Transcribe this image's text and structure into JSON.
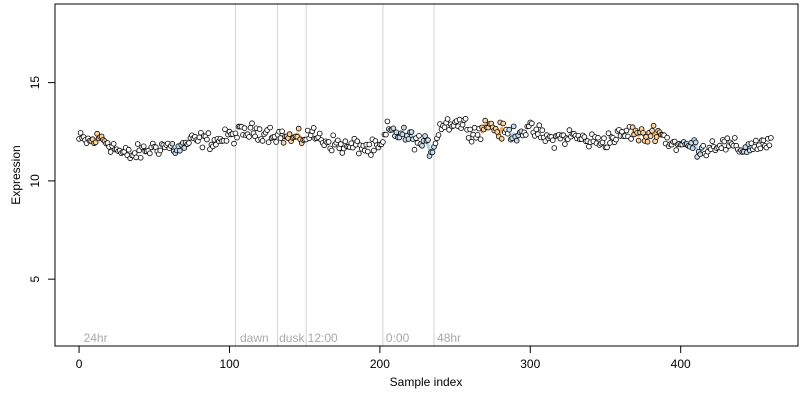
{
  "chart_data": {
    "type": "scatter",
    "title": "",
    "xlabel": "Sample index",
    "ylabel": "Expression",
    "xlim": [
      -16,
      478
    ],
    "ylim": [
      1.6,
      19.0
    ],
    "x_ticks": [
      0,
      100,
      200,
      300,
      400
    ],
    "x_tick_labels": [
      "0",
      "100",
      "200",
      "300",
      "400"
    ],
    "y_ticks": [
      5,
      10,
      15
    ],
    "y_tick_labels": [
      "5",
      "10",
      "15"
    ],
    "grid": false,
    "legend": "none",
    "colors": {
      "point_outline": "#000000",
      "point_fill_a": "#ffd39b",
      "point_fill_b": "#c6dbef",
      "trace_a": "#e59a3a",
      "trace_b": "#9ecae1",
      "vline": "#d3d3d3",
      "annotation": "#a9a9a9"
    },
    "vlines": [
      104,
      132,
      151,
      202,
      236
    ],
    "annotations": [
      {
        "x": 3,
        "label": "24hr"
      },
      {
        "x": 107,
        "label": "dawn"
      },
      {
        "x": 133,
        "label": "dusk"
      },
      {
        "x": 152,
        "label": "12:00"
      },
      {
        "x": 204,
        "label": "0:00"
      },
      {
        "x": 238,
        "label": "48hr"
      }
    ],
    "annotation_y": 2.0,
    "trace_segments": [
      {
        "range": [
          8,
          18
        ],
        "color": "a"
      },
      {
        "range": [
          62,
          70
        ],
        "color": "b"
      },
      {
        "range": [
          136,
          149
        ],
        "color": "a"
      },
      {
        "range": [
          208,
          222
        ],
        "color": "b"
      },
      {
        "range": [
          228,
          236
        ],
        "color": "b"
      },
      {
        "range": [
          268,
          282
        ],
        "color": "a"
      },
      {
        "range": [
          286,
          294
        ],
        "color": "b"
      },
      {
        "range": [
          368,
          388
        ],
        "color": "a"
      },
      {
        "range": [
          402,
          414
        ],
        "color": "b"
      },
      {
        "range": [
          440,
          446
        ],
        "color": "b"
      }
    ],
    "anchor_points": [
      [
        0,
        12.1
      ],
      [
        8,
        12.0
      ],
      [
        15,
        12.2
      ],
      [
        22,
        11.8
      ],
      [
        28,
        11.4
      ],
      [
        35,
        11.3
      ],
      [
        42,
        11.5
      ],
      [
        50,
        11.7
      ],
      [
        58,
        11.8
      ],
      [
        66,
        11.6
      ],
      [
        74,
        12.0
      ],
      [
        82,
        12.1
      ],
      [
        90,
        12.0
      ],
      [
        98,
        12.2
      ],
      [
        106,
        12.4
      ],
      [
        114,
        12.5
      ],
      [
        122,
        12.5
      ],
      [
        130,
        12.4
      ],
      [
        138,
        12.2
      ],
      [
        146,
        12.1
      ],
      [
        154,
        12.4
      ],
      [
        162,
        12.1
      ],
      [
        170,
        11.9
      ],
      [
        178,
        11.7
      ],
      [
        186,
        11.8
      ],
      [
        194,
        11.6
      ],
      [
        201,
        11.7
      ],
      [
        205,
        12.6
      ],
      [
        212,
        12.4
      ],
      [
        220,
        12.2
      ],
      [
        228,
        11.9
      ],
      [
        235,
        11.6
      ],
      [
        240,
        12.8
      ],
      [
        248,
        13.0
      ],
      [
        256,
        12.9
      ],
      [
        264,
        12.4
      ],
      [
        272,
        12.9
      ],
      [
        280,
        12.5
      ],
      [
        288,
        12.4
      ],
      [
        296,
        12.6
      ],
      [
        304,
        12.5
      ],
      [
        312,
        12.1
      ],
      [
        320,
        12.2
      ],
      [
        328,
        12.3
      ],
      [
        336,
        12.1
      ],
      [
        344,
        12.0
      ],
      [
        352,
        12.1
      ],
      [
        360,
        12.3
      ],
      [
        368,
        12.5
      ],
      [
        376,
        12.2
      ],
      [
        384,
        12.6
      ],
      [
        392,
        12.0
      ],
      [
        400,
        11.8
      ],
      [
        408,
        11.8
      ],
      [
        416,
        11.6
      ],
      [
        424,
        11.9
      ],
      [
        432,
        11.8
      ],
      [
        440,
        11.6
      ],
      [
        448,
        11.8
      ],
      [
        456,
        11.9
      ],
      [
        460,
        11.8
      ]
    ],
    "noise_amplitude": 0.32,
    "n_points": 461
  }
}
